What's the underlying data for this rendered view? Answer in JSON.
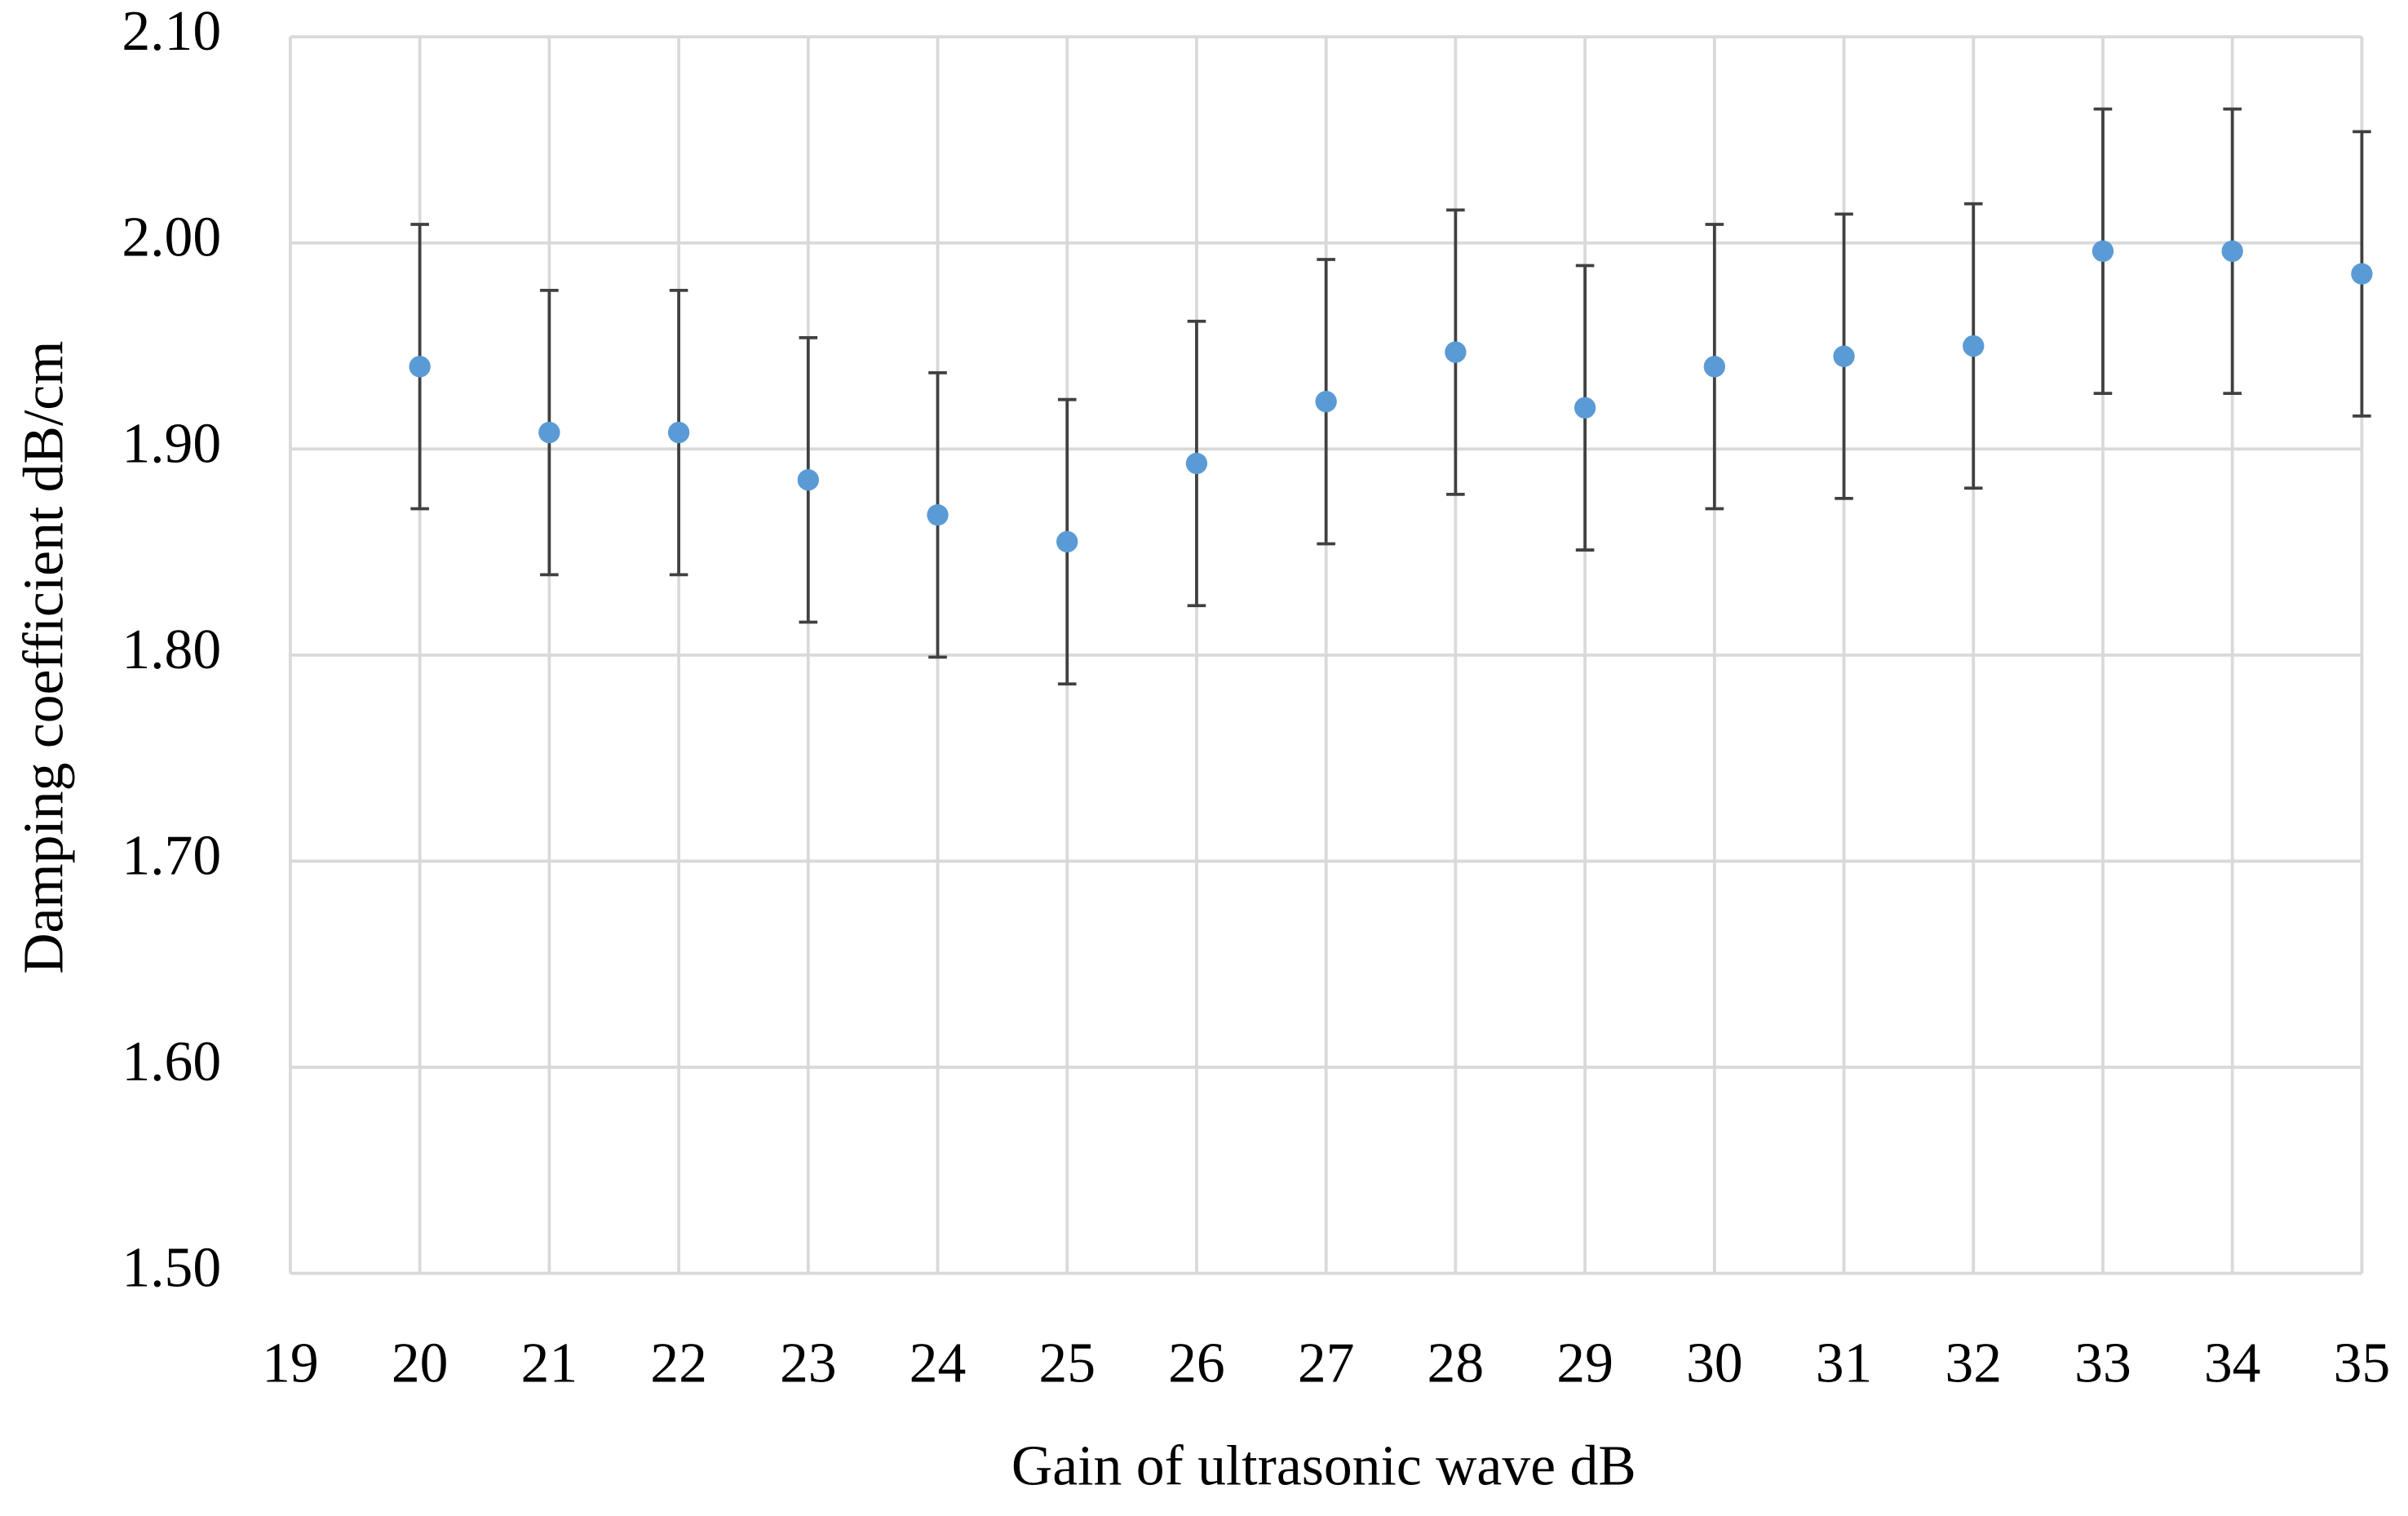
{
  "chart_data": {
    "type": "scatter",
    "x_label": "Gain of ultrasonic wave dB",
    "y_label": "Damping coefficient dB/cm",
    "x": [
      20,
      21,
      22,
      23,
      24,
      25,
      26,
      27,
      28,
      29,
      30,
      31,
      32,
      33,
      34,
      35
    ],
    "values": [
      1.94,
      1.908,
      1.908,
      1.885,
      1.868,
      1.855,
      1.893,
      1.923,
      1.947,
      1.92,
      1.94,
      1.945,
      1.95,
      1.996,
      1.996,
      1.985
    ],
    "errors": [
      0.069,
      0.069,
      0.069,
      0.069,
      0.069,
      0.069,
      0.069,
      0.069,
      0.069,
      0.069,
      0.069,
      0.069,
      0.069,
      0.069,
      0.069,
      0.069
    ],
    "color": "#5b9bd5",
    "error_color": "#404040",
    "xlim": [
      19,
      35
    ],
    "xticks": [
      19,
      20,
      21,
      22,
      23,
      24,
      25,
      26,
      27,
      28,
      29,
      30,
      31,
      32,
      33,
      34,
      35
    ],
    "ylim": [
      1.5,
      2.1
    ],
    "yticks": [
      {
        "value": 1.5,
        "label": "1.50"
      },
      {
        "value": 1.6,
        "label": "1.60"
      },
      {
        "value": 1.7,
        "label": "1.70"
      },
      {
        "value": 1.8,
        "label": "1.80"
      },
      {
        "value": 1.9,
        "label": "1.90"
      },
      {
        "value": 2.0,
        "label": "2.00"
      },
      {
        "value": 2.1,
        "label": "2.10"
      }
    ],
    "grid": true
  }
}
